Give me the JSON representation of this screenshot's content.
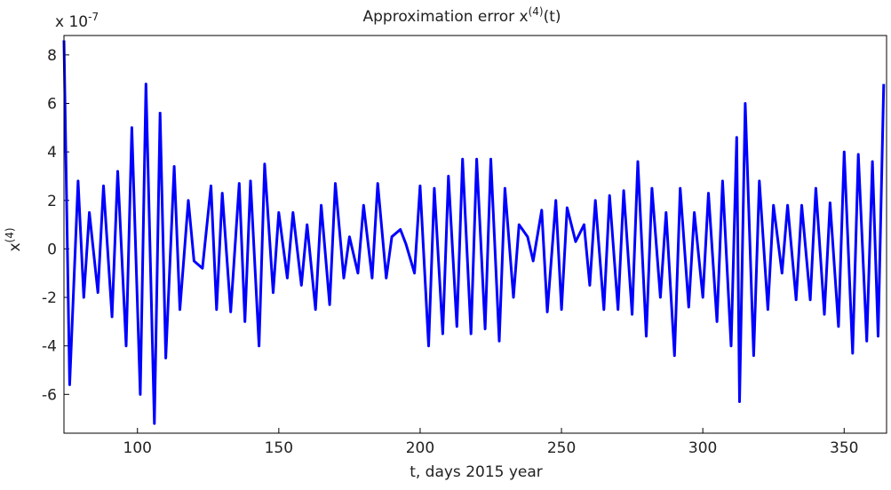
{
  "chart_data": {
    "type": "line",
    "title": {
      "text": "Approximation error x",
      "sup": "(4)",
      "end": "(t)"
    },
    "y_multiplier": {
      "text": "x 10",
      "sup": "-7"
    },
    "ylabel": {
      "text": "x",
      "sup": "(4)"
    },
    "xlabel": "t, days 2015 year",
    "xlim": [
      74,
      365
    ],
    "ylim": [
      -7.6,
      8.8
    ],
    "xticks": [
      100,
      150,
      200,
      250,
      300,
      350
    ],
    "yticks": [
      -6,
      -4,
      -2,
      0,
      2,
      4,
      6,
      8
    ],
    "series": [
      {
        "color": "#0000ff",
        "x": [
          74,
          76,
          79,
          81,
          83,
          86,
          88,
          91,
          93,
          96,
          98,
          101,
          103,
          106,
          108,
          110,
          113,
          115,
          118,
          120,
          123,
          126,
          128,
          130,
          133,
          136,
          138,
          140,
          143,
          145,
          148,
          150,
          153,
          155,
          158,
          160,
          163,
          165,
          168,
          170,
          173,
          175,
          178,
          180,
          183,
          185,
          188,
          190,
          193,
          195,
          198,
          200,
          203,
          205,
          208,
          210,
          213,
          215,
          218,
          220,
          223,
          225,
          228,
          230,
          233,
          235,
          238,
          240,
          243,
          245,
          248,
          250,
          252,
          255,
          258,
          260,
          262,
          265,
          267,
          270,
          272,
          275,
          277,
          280,
          282,
          285,
          287,
          290,
          292,
          295,
          297,
          300,
          302,
          305,
          307,
          310,
          312,
          313,
          315,
          318,
          320,
          323,
          325,
          328,
          330,
          333,
          335,
          338,
          340,
          343,
          345,
          348,
          350,
          353,
          355,
          358,
          360,
          362,
          364
        ],
        "values": [
          8.6,
          -5.6,
          2.8,
          -2,
          1.5,
          -1.8,
          2.6,
          -2.8,
          3.2,
          -4,
          5,
          -6,
          6.8,
          -7.2,
          5.6,
          -4.5,
          3.4,
          -2.5,
          2,
          -0.5,
          -0.8,
          2.6,
          -2.5,
          2.3,
          -2.6,
          2.7,
          -3,
          2.8,
          -4,
          3.5,
          -1.8,
          1.5,
          -1.2,
          1.5,
          -1.5,
          1,
          -2.5,
          1.8,
          -2.3,
          2.7,
          -1.2,
          0.5,
          -1,
          1.8,
          -1.2,
          2.7,
          -1.2,
          0.5,
          0.8,
          0.2,
          -1,
          2.6,
          -4,
          2.5,
          -3.5,
          3,
          -3.2,
          3.7,
          -3.5,
          3.7,
          -3.3,
          3.7,
          -3.8,
          2.5,
          -2,
          1,
          0.5,
          -0.5,
          1.6,
          -2.6,
          2,
          -2.5,
          1.7,
          0.3,
          1,
          -1.5,
          2,
          -2.5,
          2.2,
          -2.5,
          2.4,
          -2.7,
          3.6,
          -3.6,
          2.5,
          -2,
          1.5,
          -4.4,
          2.5,
          -2.4,
          1.5,
          -2,
          2.3,
          -3,
          2.8,
          -4,
          4.6,
          -6.3,
          6,
          -4.4,
          2.8,
          -2.5,
          1.8,
          -1,
          1.8,
          -2.1,
          1.8,
          -2.1,
          2.5,
          -2.7,
          1.9,
          -3.2,
          4,
          -4.3,
          3.9,
          -3.8,
          3.6,
          -3.6,
          6.8
        ]
      }
    ]
  }
}
